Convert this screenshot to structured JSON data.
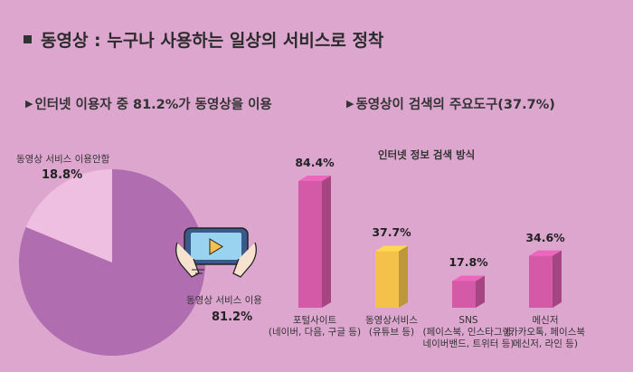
{
  "title": "동영상 : 누구나 사용하는 일상의 서비스로 정착",
  "left_section": {
    "title": "인터넷 이용자 중 81.2%가 동영상을 이용"
  },
  "right_section": {
    "title": "동영상이 검색의 주요도구(37.7%)"
  },
  "colors": {
    "background": "#dda6cf",
    "pie_use": "#b06db0",
    "pie_nonuse": "#eebfe0",
    "bar_pink": "#d45aa8",
    "bar_yellow": "#f4c24a"
  },
  "icons": {
    "tablet": "tablet-video-icon",
    "bullet": "square-bullet-icon",
    "section": "triangle-bullet-icon"
  },
  "chart_data": [
    {
      "type": "pie",
      "slices": [
        {
          "label": "동영상 서비스 이용",
          "value": 81.2,
          "value_label": "81.2%"
        },
        {
          "label": "동영상 서비스 이용안함",
          "value": 18.8,
          "value_label": "18.8%"
        }
      ]
    },
    {
      "type": "bar",
      "title": "인터넷 정보 검색 방식",
      "categories": [
        {
          "name": "포털사이트",
          "detail": "(네이버, 다음, 구글 등)"
        },
        {
          "name": "동영상서비스",
          "detail": "(유튜브 등)"
        },
        {
          "name": "SNS",
          "detail": "(페이스북, 인스타그램,",
          "detail2": "네이버밴드, 트위터 등)"
        },
        {
          "name": "메신저",
          "detail": "(카카오톡, 페이스북",
          "detail2": "메신저, 라인 등)"
        }
      ],
      "values": [
        84.4,
        37.7,
        17.8,
        34.6
      ],
      "value_labels": [
        "84.4%",
        "37.7%",
        "17.8%",
        "34.6%"
      ],
      "highlight_index": 1,
      "ylim": [
        0,
        100
      ]
    }
  ]
}
